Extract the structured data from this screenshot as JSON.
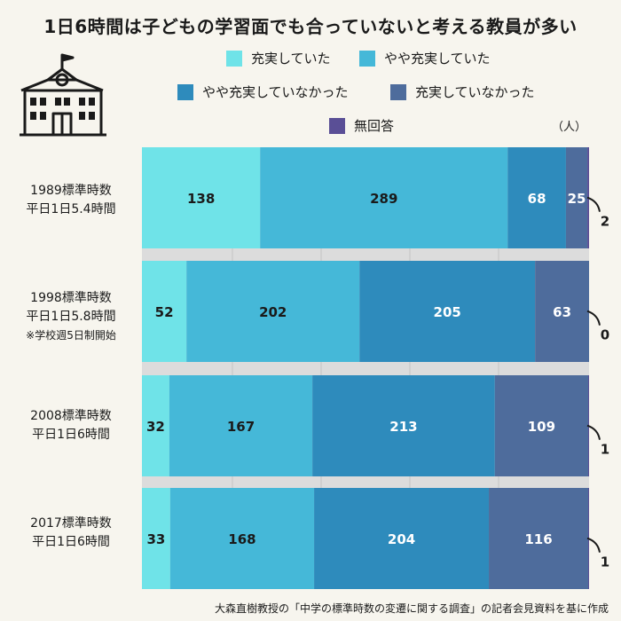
{
  "title": "1日6時間は子どもの学習面でも合っていないと考える教員が多い",
  "unit_label": "（人）",
  "source_note": "大森直樹教授の「中学の標準時数の変遷に関する調査」の記者会見資料を基に作成",
  "icons": {
    "school": "school-building-icon"
  },
  "colors": {
    "background": "#f7f5ee",
    "very_fulfilled": "#6fe3e8",
    "somewhat_fulfilled": "#45b8d8",
    "somewhat_not": "#2e8bbc",
    "not_fulfilled": "#4e6c9c",
    "no_answer": "#5a4f96"
  },
  "rows": [
    {
      "label_line1": "1989標準時数",
      "label_line2": "平日1日5.4時間",
      "note": ""
    },
    {
      "label_line1": "1998標準時数",
      "label_line2": "平日1日5.8時間",
      "note": "※学校週5日制開始"
    },
    {
      "label_line1": "2008標準時数",
      "label_line2": "平日1日6時間",
      "note": ""
    },
    {
      "label_line1": "2017標準時数",
      "label_line2": "平日1日6時間",
      "note": ""
    }
  ],
  "chart_data": {
    "type": "bar",
    "orientation": "horizontal",
    "stacked": true,
    "title": "1日6時間は子どもの学習面でも合っていないと考える教員が多い",
    "unit": "（人）",
    "categories": [
      "1989標準時数 平日1日5.4時間",
      "1998標準時数 平日1日5.8時間",
      "2008標準時数 平日1日6時間",
      "2017標準時数 平日1日6時間"
    ],
    "series": [
      {
        "name": "充実していた",
        "color": "#6fe3e8",
        "values": [
          138,
          52,
          32,
          33
        ]
      },
      {
        "name": "やや充実していた",
        "color": "#45b8d8",
        "values": [
          289,
          202,
          167,
          168
        ]
      },
      {
        "name": "やや充実していなかった",
        "color": "#2e8bbc",
        "values": [
          68,
          205,
          213,
          204
        ]
      },
      {
        "name": "充実していなかった",
        "color": "#4e6c9c",
        "values": [
          25,
          63,
          109,
          116
        ]
      },
      {
        "name": "無回答",
        "color": "#5a4f96",
        "values": [
          2,
          0,
          1,
          1
        ]
      }
    ],
    "legend_position": "top",
    "grid": true
  }
}
